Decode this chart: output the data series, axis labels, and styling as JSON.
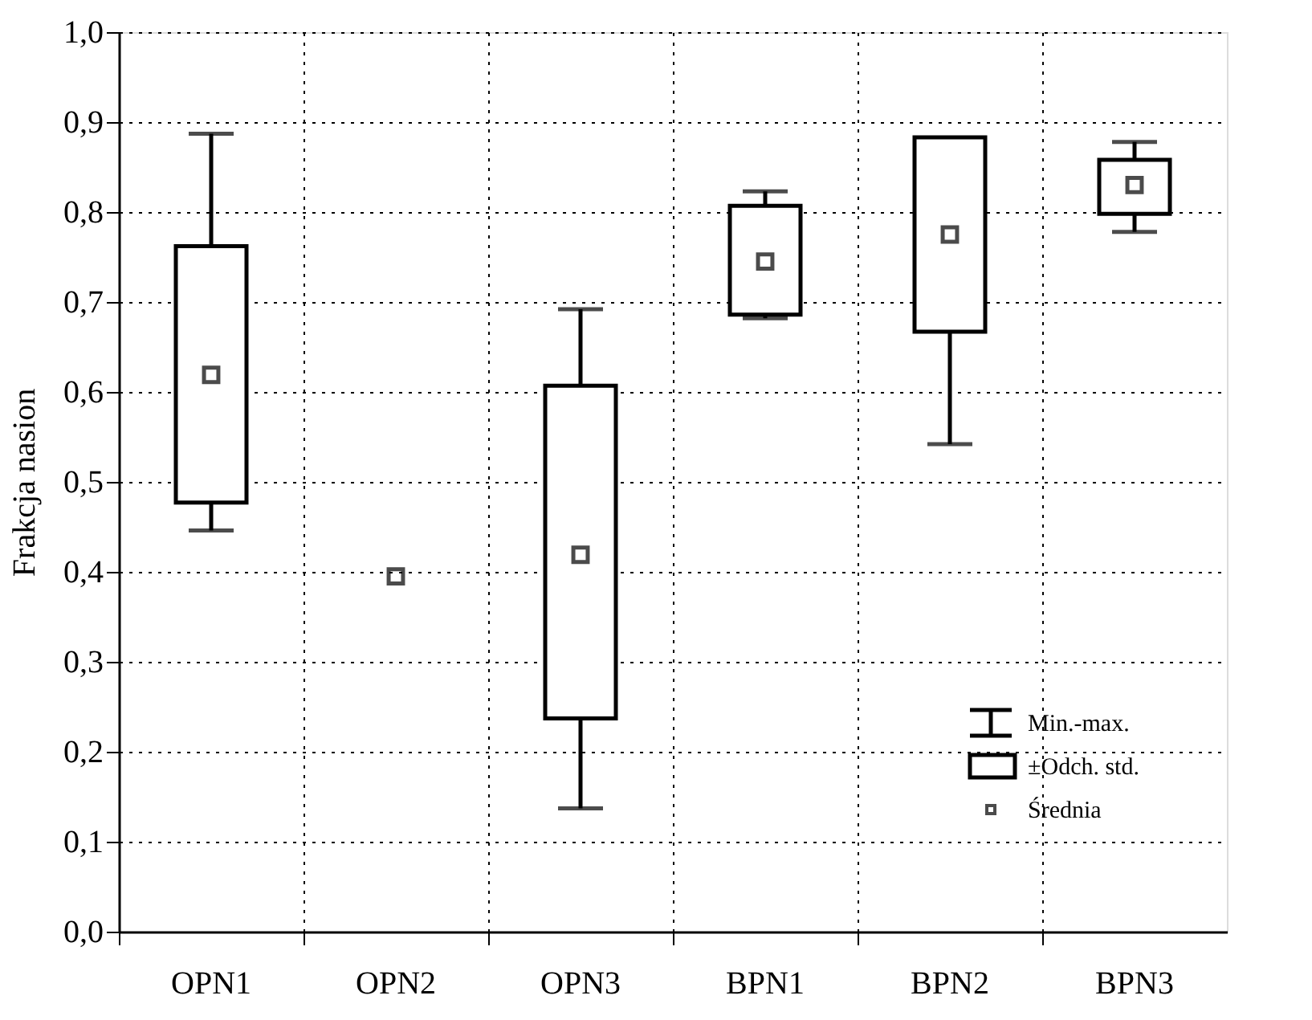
{
  "chart_data": {
    "type": "box",
    "ylabel": "Frakcja nasion",
    "categories": [
      "OPN1",
      "OPN2",
      "OPN3",
      "BPN1",
      "BPN2",
      "BPN3"
    ],
    "ylim": [
      0,
      1
    ],
    "yticks": [
      {
        "value": 0,
        "label": "0,0"
      },
      {
        "value": 0.1,
        "label": "0,1"
      },
      {
        "value": 0.2,
        "label": "0,2"
      },
      {
        "value": 0.3,
        "label": "0,3"
      },
      {
        "value": 0.4,
        "label": "0,4"
      },
      {
        "value": 0.5,
        "label": "0,5"
      },
      {
        "value": 0.6,
        "label": "0,6"
      },
      {
        "value": 0.7,
        "label": "0,7"
      },
      {
        "value": 0.8,
        "label": "0,8"
      },
      {
        "value": 0.9,
        "label": "0,9"
      },
      {
        "value": 1,
        "label": "1,0"
      }
    ],
    "grid": true,
    "legend": "bottom right",
    "annotations": [
      "Min.-max.",
      "±Odch. std."
    ],
    "boxes": [
      {
        "low": 0.446,
        "q1": 0.477,
        "q3": 0.762,
        "high": 0.887
      },
      null,
      {
        "low": 0.137,
        "q1": 0.237,
        "q3": 0.607,
        "high": 0.692
      },
      {
        "low": 0.682,
        "q1": 0.686,
        "q3": 0.807,
        "high": 0.823
      },
      {
        "low": 0.542,
        "q1": 0.667,
        "q3": 0.883,
        "high": 0.883
      },
      {
        "low": 0.778,
        "q1": 0.798,
        "q3": 0.858,
        "high": 0.878
      }
    ],
    "series": [
      {
        "name": "Średnia",
        "type": "scatter",
        "color": "#000000",
        "marker": "square",
        "x": [
          "OPN1",
          "OPN2",
          "OPN3",
          "BPN1",
          "BPN2",
          "BPN3"
        ],
        "values": [
          0.619,
          0.395,
          0.419,
          0.745,
          0.775,
          0.83
        ]
      }
    ]
  }
}
